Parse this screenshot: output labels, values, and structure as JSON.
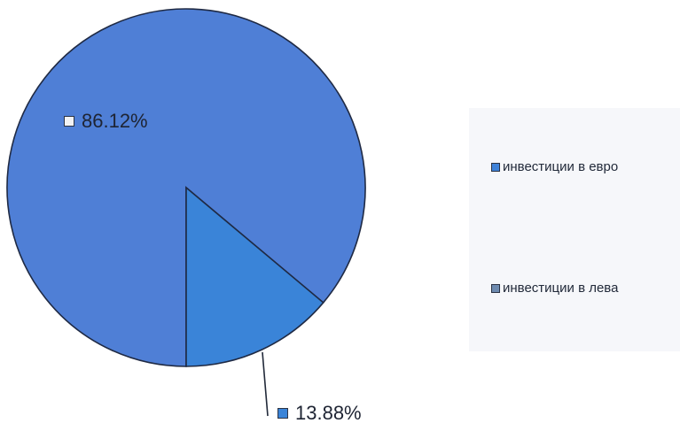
{
  "chart_data": {
    "type": "pie",
    "slices": [
      {
        "label": "инвестиции в евро",
        "value": 86.12,
        "data_label": "86.12%",
        "color": "#4f7fd6"
      },
      {
        "label": "инвестиции в лева",
        "value": 13.88,
        "data_label": "13.88%",
        "color": "#3a84d8"
      }
    ],
    "legend": {
      "placement": "right",
      "items": [
        {
          "label": "инвестиции в евро",
          "color": "#3f82d8"
        },
        {
          "label": "инвестиции в лева",
          "color": "#6e8bb0"
        }
      ]
    },
    "data_label_swatches": [
      "#f1f2f4",
      "#3a84d8"
    ]
  }
}
